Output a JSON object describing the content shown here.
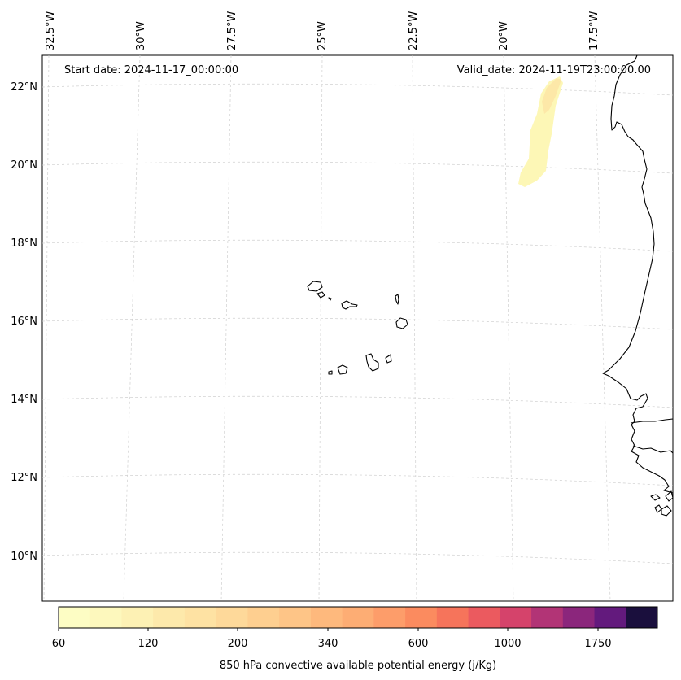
{
  "map": {
    "start_label": "Start date: 2024-11-17_00:00:00",
    "valid_label": "Valid_date: 2024-11-19T23:00:00.00",
    "lon_labels": [
      "32.5°W",
      "30°W",
      "27.5°W",
      "25°W",
      "22.5°W",
      "20°W",
      "17.5°W"
    ],
    "lat_labels": [
      "22°N",
      "20°N",
      "18°N",
      "16°N",
      "14°N",
      "12°N",
      "10°N"
    ],
    "gridlines": true,
    "region": "Cabo Verde / West African coast"
  },
  "colorbar": {
    "label": "850 hPa convective available potential energy (j/Kg)",
    "tick_labels": [
      "60",
      "120",
      "200",
      "340",
      "600",
      "1000",
      "1750"
    ],
    "colors": [
      "#fdfdc4",
      "#fdf8bd",
      "#fdf1b4",
      "#fde9ab",
      "#fee2a3",
      "#fed99a",
      "#fecf90",
      "#fec587",
      "#feb97d",
      "#fdad74",
      "#fd9d6a",
      "#fb8b5f",
      "#f6745b",
      "#eb5a5f",
      "#d5436b",
      "#b23476",
      "#8b267c",
      "#631a7d",
      "#1a0f3d"
    ]
  }
}
